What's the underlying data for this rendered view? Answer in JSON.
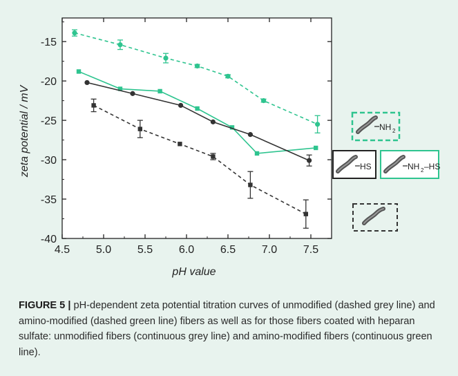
{
  "caption": {
    "label": "FIGURE 5 |",
    "text": " pH-dependent zeta potential titration curves of unmodified (dashed grey line) and amino-modified (dashed green line) fibers as well as for those fibers coated with heparan sulfate: unmodified fibers (continuous grey line) and amino-modified fibers (continuous green line)."
  },
  "legend": {
    "nh2": {
      "main": "NH",
      "sub": "2"
    },
    "hs": {
      "main": "HS"
    },
    "nh2hs": {
      "main": "NH",
      "sub": "2",
      "tail": "–HS"
    }
  },
  "colors": {
    "green": "#2ec48f",
    "grey": "#333333",
    "panel": "#e8f3ee"
  },
  "chart_data": {
    "type": "line",
    "xlabel": "pH value",
    "ylabel": "zeta potential / mV",
    "xlim": [
      4.5,
      7.75
    ],
    "ylim": [
      -40,
      -12
    ],
    "xticks": [
      4.5,
      5.0,
      5.5,
      6.0,
      6.5,
      7.0,
      7.5
    ],
    "xtick_labels": [
      "4.5",
      "5.0",
      "5.5",
      "6.0",
      "6.5",
      "7.0",
      "7.5"
    ],
    "yticks": [
      -40,
      -35,
      -30,
      -25,
      -20,
      -15
    ],
    "ytick_labels": [
      "-40",
      "-35",
      "-30",
      "-25",
      "-20",
      "-15"
    ],
    "series": [
      {
        "key": "nh2",
        "color": "#2ec48f",
        "dashed": true,
        "marker": "circle",
        "x": [
          4.65,
          5.2,
          5.75,
          6.13,
          6.5,
          6.93,
          7.58
        ],
        "y": [
          -13.9,
          -15.4,
          -17.1,
          -18.1,
          -19.4,
          -22.5,
          -25.5
        ],
        "err": [
          0.4,
          0.6,
          0.6,
          0.2,
          0.2,
          0.2,
          1.1
        ]
      },
      {
        "key": "nh2hs",
        "color": "#2ec48f",
        "dashed": false,
        "marker": "square",
        "x": [
          4.7,
          5.2,
          5.68,
          6.13,
          6.55,
          6.85,
          7.56
        ],
        "y": [
          -18.8,
          -21.0,
          -21.3,
          -23.5,
          -25.9,
          -29.2,
          -28.5
        ],
        "err": [
          0,
          0,
          0,
          0,
          0,
          0,
          0
        ]
      },
      {
        "key": "hs",
        "color": "#333333",
        "dashed": false,
        "marker": "circle",
        "x": [
          4.8,
          5.35,
          5.93,
          6.32,
          6.77,
          7.48
        ],
        "y": [
          -20.2,
          -21.6,
          -23.1,
          -25.2,
          -26.8,
          -30.1
        ],
        "err": [
          0,
          0,
          0,
          0,
          0,
          0.7
        ]
      },
      {
        "key": "plain",
        "color": "#333333",
        "dashed": true,
        "marker": "square",
        "x": [
          4.88,
          5.44,
          5.92,
          6.32,
          6.77,
          7.44
        ],
        "y": [
          -23.1,
          -26.1,
          -28.0,
          -29.6,
          -33.2,
          -36.9
        ],
        "err": [
          0.8,
          1.1,
          0,
          0.4,
          1.7,
          1.8
        ]
      }
    ]
  }
}
